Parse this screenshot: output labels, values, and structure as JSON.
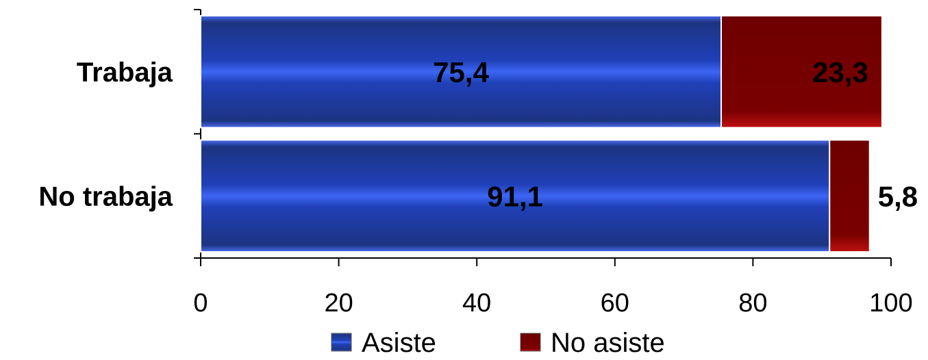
{
  "chart_data": {
    "type": "bar",
    "orientation": "horizontal",
    "stacked": true,
    "categories": [
      "Trabaja",
      "No trabaja"
    ],
    "series": [
      {
        "name": "Asiste",
        "values": [
          75.4,
          91.1
        ],
        "labels": [
          "75,4",
          "91,1"
        ],
        "color": "#1f3a8a"
      },
      {
        "name": "No asiste",
        "values": [
          23.3,
          5.8
        ],
        "labels": [
          "23,3",
          "5,8"
        ],
        "color": "#7a0000"
      }
    ],
    "xlim": [
      0,
      100
    ],
    "xticks": [
      0,
      20,
      40,
      60,
      80,
      100
    ],
    "grid": false,
    "legend": "bottom"
  }
}
